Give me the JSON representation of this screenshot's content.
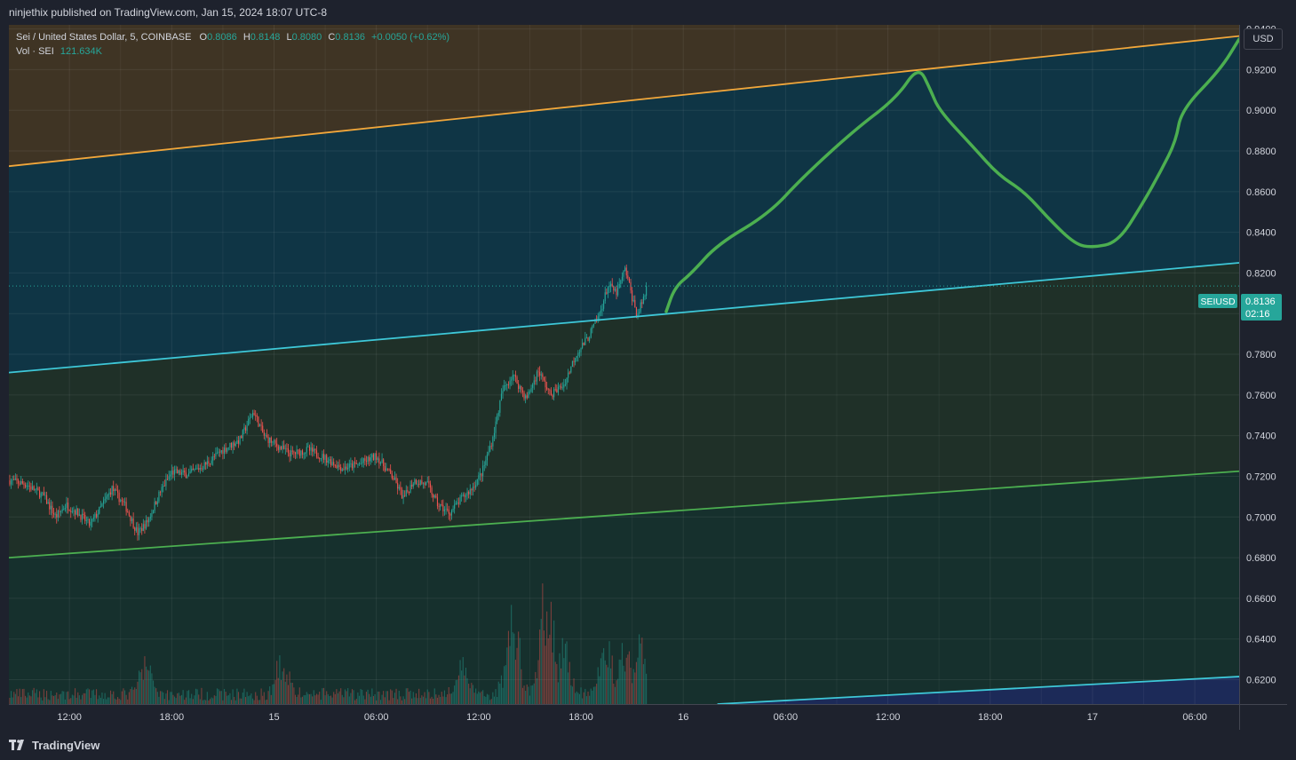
{
  "header": {
    "published_text": "ninjethix published on TradingView.com, Jan 15, 2024 18:07 UTC-8"
  },
  "legend": {
    "symbol_desc": "Sei / United States Dollar, 5, COINBASE",
    "open_label": "O",
    "open": "0.8086",
    "high_label": "H",
    "high": "0.8148",
    "low_label": "L",
    "low": "0.8080",
    "close_label": "C",
    "close": "0.8136",
    "change": "+0.0050 (+0.62%)",
    "vol_label": "Vol · SEI",
    "vol_value": "121.634K"
  },
  "currency_button": "USD",
  "price_tag": {
    "symbol": "SEIUSD",
    "price": "0.8136",
    "countdown": "02:16"
  },
  "footer": {
    "brand": "TradingView"
  },
  "colors": {
    "bg": "#1e222d",
    "up": "#26a69a",
    "down": "#ef5350",
    "orange_line": "#f2a73b",
    "cyan_line": "#3ec8d8",
    "green_line": "#4caf50",
    "drawing": "#4caf50"
  },
  "chart_data": {
    "type": "candlestick",
    "symbol": "SEIUSD",
    "timeframe": "5",
    "x_ticks": [
      "12:00",
      "18:00",
      "15",
      "06:00",
      "12:00",
      "18:00",
      "16",
      "06:00",
      "12:00",
      "18:00",
      "17",
      "06:00"
    ],
    "x_tick_hours": [
      12,
      18,
      24,
      30,
      36,
      42,
      48,
      54,
      60,
      66,
      72,
      78
    ],
    "x_range_hours": [
      8.45,
      80.6
    ],
    "y_ticks": [
      "0.9400",
      "0.9200",
      "0.9000",
      "0.8800",
      "0.8600",
      "0.8400",
      "0.8200",
      "0.8000",
      "0.7800",
      "0.7600",
      "0.7400",
      "0.7200",
      "0.7000",
      "0.6800",
      "0.6600",
      "0.6400",
      "0.6200"
    ],
    "y_range": [
      0.608,
      0.942
    ],
    "price_path": [
      [
        8.5,
        0.718
      ],
      [
        9.5,
        0.716
      ],
      [
        10.5,
        0.71
      ],
      [
        11.2,
        0.7
      ],
      [
        11.8,
        0.706
      ],
      [
        12.5,
        0.702
      ],
      [
        13.2,
        0.696
      ],
      [
        13.8,
        0.704
      ],
      [
        14.5,
        0.714
      ],
      [
        15.3,
        0.705
      ],
      [
        16.0,
        0.692
      ],
      [
        16.6,
        0.698
      ],
      [
        17.3,
        0.712
      ],
      [
        18.0,
        0.722
      ],
      [
        19.0,
        0.721
      ],
      [
        20.0,
        0.726
      ],
      [
        21.0,
        0.733
      ],
      [
        22.0,
        0.738
      ],
      [
        22.8,
        0.752
      ],
      [
        23.4,
        0.74
      ],
      [
        24.0,
        0.736
      ],
      [
        25.0,
        0.731
      ],
      [
        26.0,
        0.733
      ],
      [
        27.0,
        0.729
      ],
      [
        28.0,
        0.724
      ],
      [
        29.0,
        0.726
      ],
      [
        30.0,
        0.73
      ],
      [
        31.0,
        0.719
      ],
      [
        31.6,
        0.709
      ],
      [
        32.2,
        0.718
      ],
      [
        33.0,
        0.716
      ],
      [
        33.6,
        0.706
      ],
      [
        34.3,
        0.702
      ],
      [
        35.0,
        0.709
      ],
      [
        35.6,
        0.714
      ],
      [
        36.2,
        0.722
      ],
      [
        36.8,
        0.738
      ],
      [
        37.4,
        0.762
      ],
      [
        38.0,
        0.77
      ],
      [
        38.8,
        0.758
      ],
      [
        39.5,
        0.772
      ],
      [
        40.2,
        0.76
      ],
      [
        41.0,
        0.765
      ],
      [
        41.7,
        0.78
      ],
      [
        42.4,
        0.788
      ],
      [
        43.1,
        0.8
      ],
      [
        43.6,
        0.814
      ],
      [
        44.1,
        0.81
      ],
      [
        44.6,
        0.822
      ],
      [
        45.0,
        0.808
      ],
      [
        45.3,
        0.799
      ],
      [
        45.6,
        0.806
      ],
      [
        45.9,
        0.8136
      ]
    ],
    "volume_series_label": "Vol · SEI",
    "volume_max": 163.0,
    "volume_peaks": [
      [
        16.5,
        46
      ],
      [
        24.5,
        52
      ],
      [
        35.0,
        40
      ],
      [
        38.0,
        118
      ],
      [
        40.0,
        163
      ],
      [
        41.0,
        64
      ],
      [
        43.5,
        72
      ],
      [
        44.5,
        90
      ],
      [
        45.5,
        71
      ]
    ],
    "channel_lines": [
      {
        "color_key": "orange_line",
        "from": [
          8.45,
          0.8725
        ],
        "to": [
          80.6,
          0.9365
        ]
      },
      {
        "color_key": "cyan_line",
        "from": [
          8.45,
          0.771
        ],
        "to": [
          80.6,
          0.825
        ]
      },
      {
        "color_key": "green_line",
        "from": [
          8.45,
          0.68
        ],
        "to": [
          80.6,
          0.7225
        ]
      },
      {
        "color_key": "cyan_line",
        "from": [
          50.0,
          0.608
        ],
        "to": [
          80.6,
          0.6215
        ]
      }
    ],
    "projection_path": [
      [
        47.0,
        0.801
      ],
      [
        47.5,
        0.813
      ],
      [
        48.5,
        0.82
      ],
      [
        50.0,
        0.834
      ],
      [
        53.0,
        0.849
      ],
      [
        55.0,
        0.867
      ],
      [
        58.0,
        0.89
      ],
      [
        60.5,
        0.906
      ],
      [
        61.8,
        0.922
      ],
      [
        62.5,
        0.91
      ],
      [
        63.0,
        0.9
      ],
      [
        65.0,
        0.882
      ],
      [
        66.5,
        0.868
      ],
      [
        68.0,
        0.86
      ],
      [
        69.5,
        0.846
      ],
      [
        71.0,
        0.834
      ],
      [
        72.0,
        0.8325
      ],
      [
        73.5,
        0.835
      ],
      [
        75.0,
        0.855
      ],
      [
        76.0,
        0.87
      ],
      [
        76.9,
        0.885
      ],
      [
        77.2,
        0.9
      ],
      [
        79.5,
        0.92
      ],
      [
        80.6,
        0.935
      ]
    ],
    "last_price": 0.8136,
    "grid": true,
    "legend_position": "top-left"
  }
}
